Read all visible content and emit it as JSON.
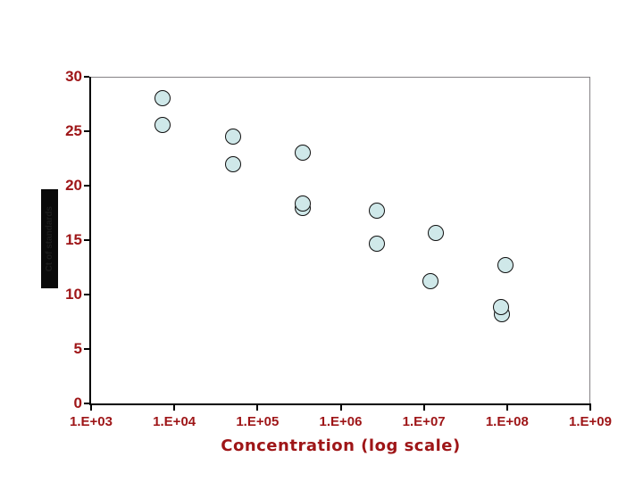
{
  "page": {
    "background_color": "#ffffff"
  },
  "chart": {
    "x_axis": {
      "title": "Concentration (log scale)",
      "tick_labels": [
        "1.E+03",
        "1.E+04",
        "1.E+05",
        "1.E+06",
        "1.E+07",
        "1.E+08",
        "1.E+09"
      ]
    },
    "y_axis": {
      "title": "Ct of standards",
      "tick_labels": [
        "30",
        "25",
        "20",
        "15",
        "10",
        "5",
        "0"
      ]
    },
    "colors": {
      "label_red": "#9e1517",
      "axis_black": "#000000",
      "border_gray": "#848284",
      "marker_fill": "#cfe8e9",
      "marker_border": "#101010",
      "y_title_box_bg": "#0a0a0a",
      "y_title_box_fg": "#1d1d1d",
      "page_bg": "#ffffff"
    }
  },
  "chart_data": {
    "type": "scatter",
    "title": "",
    "xlabel": "Concentration (log scale)",
    "ylabel": "Ct of standards",
    "x_scale": "log",
    "xlim_log10": [
      3,
      9
    ],
    "ylim": [
      0,
      30
    ],
    "y_tick_step": 5,
    "grid": "off",
    "legend": "none",
    "marker": "circle",
    "points": [
      {
        "concentration": 7300,
        "ct": 28.0
      },
      {
        "concentration": 7300,
        "ct": 25.6
      },
      {
        "concentration": 51000,
        "ct": 24.5
      },
      {
        "concentration": 51000,
        "ct": 22.0
      },
      {
        "concentration": 350000,
        "ct": 23.0
      },
      {
        "concentration": 350000,
        "ct": 17.95
      },
      {
        "concentration": 350000,
        "ct": 18.4
      },
      {
        "concentration": 2700000,
        "ct": 17.7
      },
      {
        "concentration": 2700000,
        "ct": 14.7
      },
      {
        "concentration": 14000000,
        "ct": 15.65
      },
      {
        "concentration": 12000000,
        "ct": 11.2
      },
      {
        "concentration": 95000000,
        "ct": 12.7
      },
      {
        "concentration": 86000000,
        "ct": 8.2
      },
      {
        "concentration": 85000000,
        "ct": 8.85
      }
    ]
  }
}
